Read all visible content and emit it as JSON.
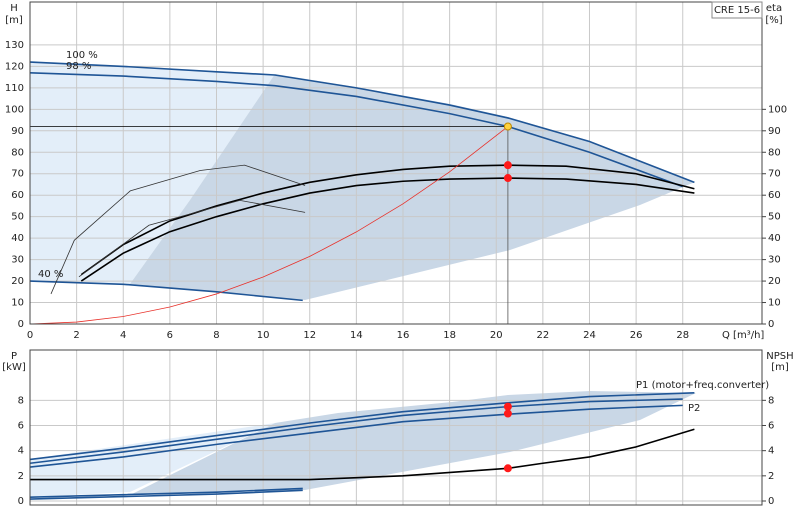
{
  "chart_data": [
    {
      "type": "line",
      "title": "CRE 15-6",
      "ylabel": "H",
      "yunit": "[m]",
      "y2label": "eta",
      "y2unit": "[%]",
      "xlabel": "Q [m³/h]",
      "xlim": [
        0,
        31.4
      ],
      "xticks": [
        0,
        2,
        4,
        6,
        8,
        10,
        12,
        14,
        16,
        18,
        20,
        22,
        24,
        26,
        28
      ],
      "ylim": [
        0,
        150
      ],
      "yticks": [
        0,
        10,
        20,
        30,
        40,
        50,
        60,
        70,
        80,
        90,
        100,
        110,
        120,
        130
      ],
      "y2lim": [
        0,
        150
      ],
      "y2ticks": [
        0,
        10,
        20,
        30,
        40,
        50,
        60,
        70,
        80,
        90,
        100
      ],
      "grid": true,
      "series": [
        {
          "label": "100 %",
          "color": "#1f5596",
          "x": [
            0,
            4,
            8,
            10.5,
            14,
            18,
            20.5,
            24,
            28.5
          ],
          "values": [
            122,
            120,
            117.5,
            116,
            110,
            102,
            96,
            85,
            66
          ]
        },
        {
          "label": "98 %",
          "color": "#1f5596",
          "x": [
            0,
            4,
            8,
            10.5,
            14,
            18,
            20.5,
            24,
            28
          ],
          "values": [
            117,
            115.5,
            113,
            111,
            106,
            98,
            92,
            80,
            64
          ]
        },
        {
          "label": "40 %",
          "color": "#1f5596",
          "x": [
            0,
            4,
            8,
            11.7
          ],
          "values": [
            20,
            18.5,
            15,
            11
          ]
        },
        {
          "color": "#000000",
          "axis": "y2",
          "x": [
            2.2,
            4,
            6,
            8,
            10,
            12,
            14,
            16,
            18,
            20.5,
            23,
            26,
            28.5
          ],
          "values": [
            23,
            37,
            48,
            55,
            61,
            66,
            69.5,
            72,
            73.5,
            74,
            73.5,
            70,
            63
          ]
        },
        {
          "color": "#000000",
          "axis": "y2",
          "x": [
            2.2,
            4,
            6,
            8,
            10,
            12,
            14,
            16,
            18,
            20.5,
            23,
            26,
            28.5
          ],
          "values": [
            20,
            33,
            43,
            50,
            56,
            61,
            64.5,
            66.5,
            67.5,
            68,
            67.5,
            65,
            61
          ]
        },
        {
          "color": "#333333",
          "axis": "y2",
          "x": [
            0.9,
            1.9,
            4.3,
            7.3,
            9.2,
            11.8
          ],
          "values": [
            14,
            39,
            62,
            71.5,
            74,
            64.5
          ]
        },
        {
          "color": "#333333",
          "axis": "y2",
          "x": [
            2.1,
            5.1,
            9,
            11.8
          ],
          "values": [
            22,
            46,
            57.6,
            52
          ]
        },
        {
          "color": "#e8312a",
          "x": [
            0,
            2,
            4,
            6,
            8,
            10,
            12,
            14,
            16,
            18,
            20.5
          ],
          "values": [
            0,
            0.9,
            3.5,
            7.9,
            14,
            21.9,
            31.5,
            42.9,
            56,
            70.9,
            92
          ]
        },
        {
          "color": "#000000",
          "x": [
            0,
            20.5
          ],
          "values": [
            92,
            92
          ]
        },
        {
          "color": "#555555",
          "x": [
            20.5,
            20.5
          ],
          "values": [
            0,
            92
          ]
        },
        {
          "color": "#ffd23f",
          "marker": true,
          "x": [
            20.5
          ],
          "values": [
            92
          ]
        },
        {
          "color": "#ff1a1a",
          "marker": true,
          "x": [
            20.5,
            20.5
          ],
          "values": [
            74,
            68
          ]
        }
      ]
    },
    {
      "type": "line",
      "ylabel": "P",
      "yunit": "[kW]",
      "y2label": "NPSH",
      "y2unit": "[m]",
      "xlim": [
        0,
        31.4
      ],
      "xticks": [
        0,
        2,
        4,
        6,
        8,
        10,
        12,
        14,
        16,
        18,
        20,
        22,
        24,
        26,
        28
      ],
      "show_xtick_labels": false,
      "ylim": [
        0,
        12
      ],
      "yticks": [
        0,
        2,
        4,
        6,
        8
      ],
      "y2lim": [
        0,
        12
      ],
      "y2ticks": [
        0,
        2,
        4,
        6,
        8
      ],
      "grid": true,
      "series": [
        {
          "label": "P1 (motor+freq.converter)",
          "color": "#1f5596",
          "x": [
            0,
            4,
            8,
            12,
            16,
            20.5,
            24,
            28.5
          ],
          "values": [
            3.3,
            4.2,
            5.2,
            6.2,
            7.1,
            7.8,
            8.3,
            8.6
          ]
        },
        {
          "color": "#1f5596",
          "x": [
            0,
            4,
            8,
            12,
            16,
            20.5,
            24,
            28
          ],
          "values": [
            3,
            3.9,
            4.9,
            5.9,
            6.8,
            7.5,
            7.9,
            8.1
          ]
        },
        {
          "label": "P2",
          "color": "#1f5596",
          "x": [
            0,
            4,
            8,
            12,
            16,
            20.5,
            24,
            28
          ],
          "values": [
            2.7,
            3.5,
            4.5,
            5.4,
            6.3,
            6.9,
            7.3,
            7.6
          ]
        },
        {
          "color": "#1f5596",
          "x": [
            0,
            4,
            8,
            11.7
          ],
          "values": [
            0.3,
            0.5,
            0.7,
            1
          ]
        },
        {
          "color": "#1f5596",
          "x": [
            0,
            4,
            8,
            11.7
          ],
          "values": [
            0.15,
            0.35,
            0.55,
            0.85
          ]
        },
        {
          "color": "#000000",
          "axis": "y2",
          "x": [
            0,
            4,
            8,
            12,
            16,
            20.5,
            22,
            24,
            26,
            28.5
          ],
          "values": [
            1.7,
            1.7,
            1.7,
            1.7,
            2,
            2.6,
            3,
            3.5,
            4.3,
            5.7
          ]
        },
        {
          "color": "#ff1a1a",
          "marker": true,
          "x": [
            20.5,
            20.5
          ],
          "values": [
            7.5,
            6.95
          ]
        },
        {
          "color": "#ff1a1a",
          "marker": true,
          "axis": "y2",
          "x": [
            20.5
          ],
          "values": [
            2.6
          ]
        }
      ]
    }
  ]
}
